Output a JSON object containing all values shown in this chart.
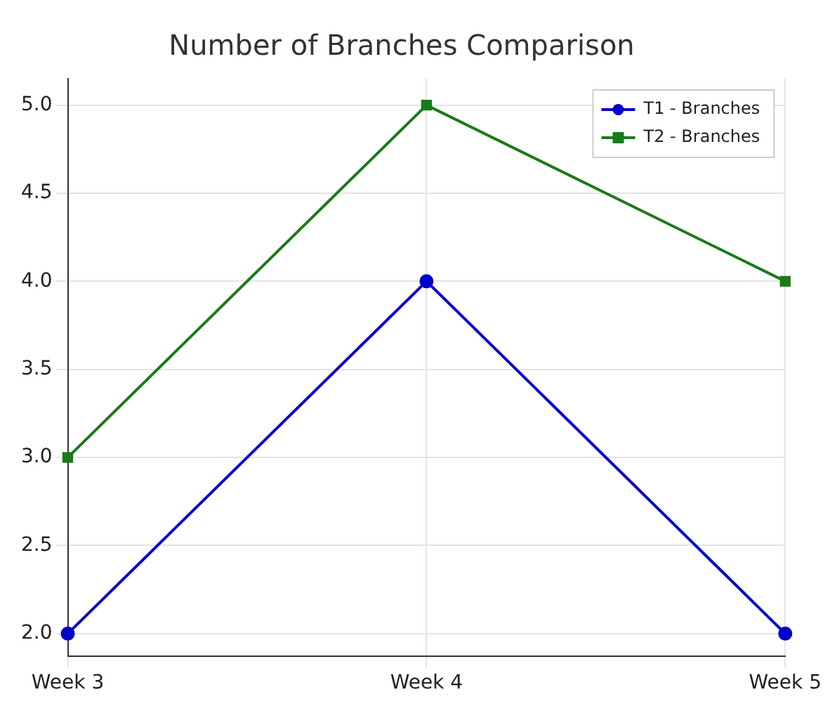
{
  "chart_data": {
    "type": "line",
    "title": "Number of Branches Comparison",
    "categories": [
      "Week 3",
      "Week 4",
      "Week 5"
    ],
    "series": [
      {
        "name": "T1 - Branches",
        "color": "#0000cc",
        "values": [
          2,
          4,
          2
        ],
        "marker": "circle"
      },
      {
        "name": "T2 - Branches",
        "color": "#1a7a1a",
        "values": [
          3,
          5,
          4
        ],
        "marker": "square"
      }
    ],
    "ylim": [
      1.87,
      5.15
    ],
    "yticks": [
      {
        "value": 2,
        "label": "2.0"
      },
      {
        "value": 2.5,
        "label": "2.5"
      },
      {
        "value": 3,
        "label": "3.0"
      },
      {
        "value": 3.5,
        "label": "3.5"
      },
      {
        "value": 4,
        "label": "4.0"
      },
      {
        "value": 4.5,
        "label": "4.5"
      },
      {
        "value": 5,
        "label": "5.0"
      }
    ],
    "grid": true,
    "legend": "top right",
    "line_style": "solid"
  }
}
